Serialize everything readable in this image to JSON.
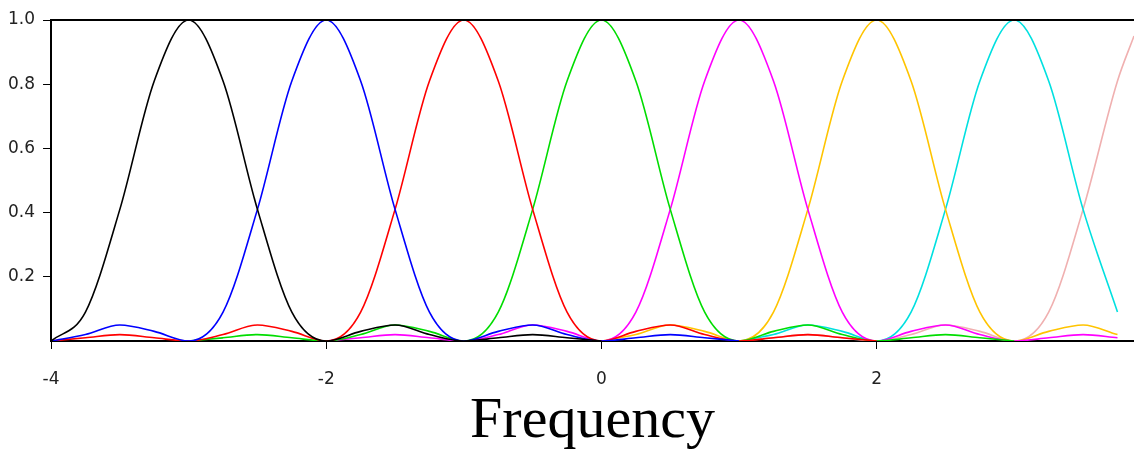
{
  "chart_data": {
    "type": "line",
    "xlabel": "Frequency",
    "xlim": [
      -4,
      3.87
    ],
    "ylim": [
      0,
      1
    ],
    "xticks": [
      -4,
      -2,
      0,
      2
    ],
    "yticks": [
      0.2,
      0.4,
      0.6,
      0.8,
      {
        "value": 1,
        "label": "1.0"
      }
    ],
    "grid": false,
    "legend": false,
    "marker": "none",
    "line_style": "solid",
    "series": [
      {
        "color": "#000000",
        "x": [
          -4,
          -3.75,
          -3.5,
          -3.25,
          -3,
          -2.75,
          -2.5,
          -2.25,
          -2,
          -1.75,
          -1.5,
          -1.25,
          -1,
          -0.75,
          -0.5,
          -0.25,
          0
        ],
        "values": [
          0,
          0.09,
          0.41,
          0.81,
          1,
          0.81,
          0.41,
          0.09,
          0,
          0.03,
          0.05,
          0.02,
          0,
          0.01,
          0.02,
          0.01,
          0
        ]
      },
      {
        "color": "#0000ff",
        "x": [
          -4,
          -3.75,
          -3.5,
          -3.25,
          -3,
          -2.75,
          -2.5,
          -2.25,
          -2,
          -1.75,
          -1.5,
          -1.25,
          -1,
          -0.75,
          -0.5,
          -0.25,
          0,
          0.25,
          0.5,
          0.75,
          1
        ],
        "values": [
          0,
          0.02,
          0.05,
          0.03,
          0,
          0.09,
          0.41,
          0.81,
          1,
          0.81,
          0.41,
          0.09,
          0,
          0.03,
          0.05,
          0.02,
          0,
          0.01,
          0.02,
          0.01,
          0
        ]
      },
      {
        "color": "#ff0000",
        "x": [
          -4,
          -3.75,
          -3.5,
          -3.25,
          -3,
          -2.75,
          -2.5,
          -2.25,
          -2,
          -1.75,
          -1.5,
          -1.25,
          -1,
          -0.75,
          -0.5,
          -0.25,
          0,
          0.25,
          0.5,
          0.75,
          1,
          1.25,
          1.5,
          1.75,
          2
        ],
        "values": [
          0,
          0.01,
          0.02,
          0.01,
          0,
          0.02,
          0.05,
          0.03,
          0,
          0.09,
          0.41,
          0.81,
          1,
          0.81,
          0.41,
          0.09,
          0,
          0.03,
          0.05,
          0.02,
          0,
          0.01,
          0.02,
          0.01,
          0
        ]
      },
      {
        "color": "#00dd00",
        "x": [
          -3,
          -2.75,
          -2.5,
          -2.25,
          -2,
          -1.75,
          -1.5,
          -1.25,
          -1,
          -0.75,
          -0.5,
          -0.25,
          0,
          0.25,
          0.5,
          0.75,
          1,
          1.25,
          1.5,
          1.75,
          2,
          2.25,
          2.5,
          2.75,
          3
        ],
        "values": [
          0,
          0.01,
          0.02,
          0.01,
          0,
          0.02,
          0.05,
          0.03,
          0,
          0.09,
          0.41,
          0.81,
          1,
          0.81,
          0.41,
          0.09,
          0,
          0.03,
          0.05,
          0.02,
          0,
          0.01,
          0.02,
          0.01,
          0
        ]
      },
      {
        "color": "#ff00ff",
        "x": [
          -2,
          -1.75,
          -1.5,
          -1.25,
          -1,
          -0.75,
          -0.5,
          -0.25,
          0,
          0.25,
          0.5,
          0.75,
          1,
          1.25,
          1.5,
          1.75,
          2,
          2.25,
          2.5,
          2.75,
          3,
          3.25,
          3.5,
          3.75
        ],
        "values": [
          0,
          0.01,
          0.02,
          0.01,
          0,
          0.02,
          0.05,
          0.03,
          0,
          0.09,
          0.41,
          0.81,
          1,
          0.81,
          0.41,
          0.09,
          0,
          0.03,
          0.05,
          0.02,
          0,
          0.01,
          0.02,
          0.01
        ]
      },
      {
        "color": "#ffc400",
        "x": [
          0,
          0.25,
          0.5,
          0.75,
          1,
          1.25,
          1.5,
          1.75,
          2,
          2.25,
          2.5,
          2.75,
          3,
          3.25,
          3.5,
          3.75
        ],
        "values": [
          0,
          0.02,
          0.05,
          0.03,
          0,
          0.09,
          0.41,
          0.81,
          1,
          0.81,
          0.41,
          0.09,
          0,
          0.03,
          0.05,
          0.02
        ]
      },
      {
        "color": "#00e0e0",
        "x": [
          1,
          1.25,
          1.5,
          1.75,
          2,
          2.25,
          2.5,
          2.75,
          3,
          3.25,
          3.5,
          3.75
        ],
        "values": [
          0,
          0.02,
          0.05,
          0.03,
          0,
          0.09,
          0.41,
          0.81,
          1,
          0.81,
          0.41,
          0.09
        ]
      },
      {
        "color": "#f0b0b0",
        "x": [
          1,
          1.25,
          1.5,
          1.75,
          2,
          2.25,
          2.5,
          2.75,
          3,
          3.25,
          3.5,
          3.75,
          3.87
        ],
        "values": [
          0,
          0.01,
          0.02,
          0.01,
          0,
          0.02,
          0.05,
          0.03,
          0,
          0.09,
          0.41,
          0.81,
          0.95
        ]
      }
    ]
  }
}
